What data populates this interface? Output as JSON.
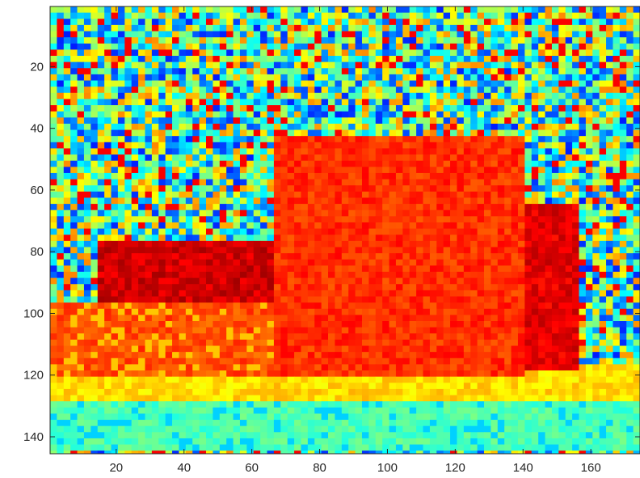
{
  "chart_data": {
    "type": "heatmap",
    "title": "",
    "xlabel": "",
    "ylabel": "",
    "xlim": [
      0.5,
      174.5
    ],
    "ylim": [
      0.5,
      145.5
    ],
    "y_reversed": true,
    "grid": false,
    "colormap": "jet",
    "x_ticks": [
      20,
      40,
      60,
      80,
      100,
      120,
      140,
      160
    ],
    "y_ticks": [
      20,
      40,
      60,
      80,
      100,
      120,
      140
    ],
    "x_tick_labels": [
      "20",
      "40",
      "60",
      "80",
      "100",
      "120",
      "140",
      "160"
    ],
    "y_tick_labels": [
      "20",
      "40",
      "60",
      "80",
      "100",
      "120",
      "140"
    ],
    "grid_size": {
      "cols": 174,
      "rows": 145
    },
    "regions": [
      {
        "name": "noisy background",
        "x": [
          1,
          174
        ],
        "y": [
          1,
          145
        ],
        "value_range": [
          0.15,
          0.75
        ]
      },
      {
        "name": "central block",
        "x": [
          66,
          140
        ],
        "y": [
          43,
          120
        ],
        "value_mean": 0.83
      },
      {
        "name": "left red band",
        "x": [
          15,
          66
        ],
        "y": [
          76,
          97
        ],
        "value_mean": 0.92
      },
      {
        "name": "lower left orange",
        "x": [
          1,
          66
        ],
        "y": [
          96,
          120
        ],
        "value_mean": 0.8
      },
      {
        "name": "right red band",
        "x": [
          140,
          156
        ],
        "y": [
          65,
          118
        ],
        "value_mean": 0.9
      },
      {
        "name": "yellow strip",
        "x": [
          1,
          174
        ],
        "y": [
          116,
          128
        ],
        "value_mean": 0.66
      },
      {
        "name": "bottom green-cyan band",
        "x": [
          1,
          174
        ],
        "y": [
          128,
          145
        ],
        "value_mean": 0.45
      }
    ]
  }
}
